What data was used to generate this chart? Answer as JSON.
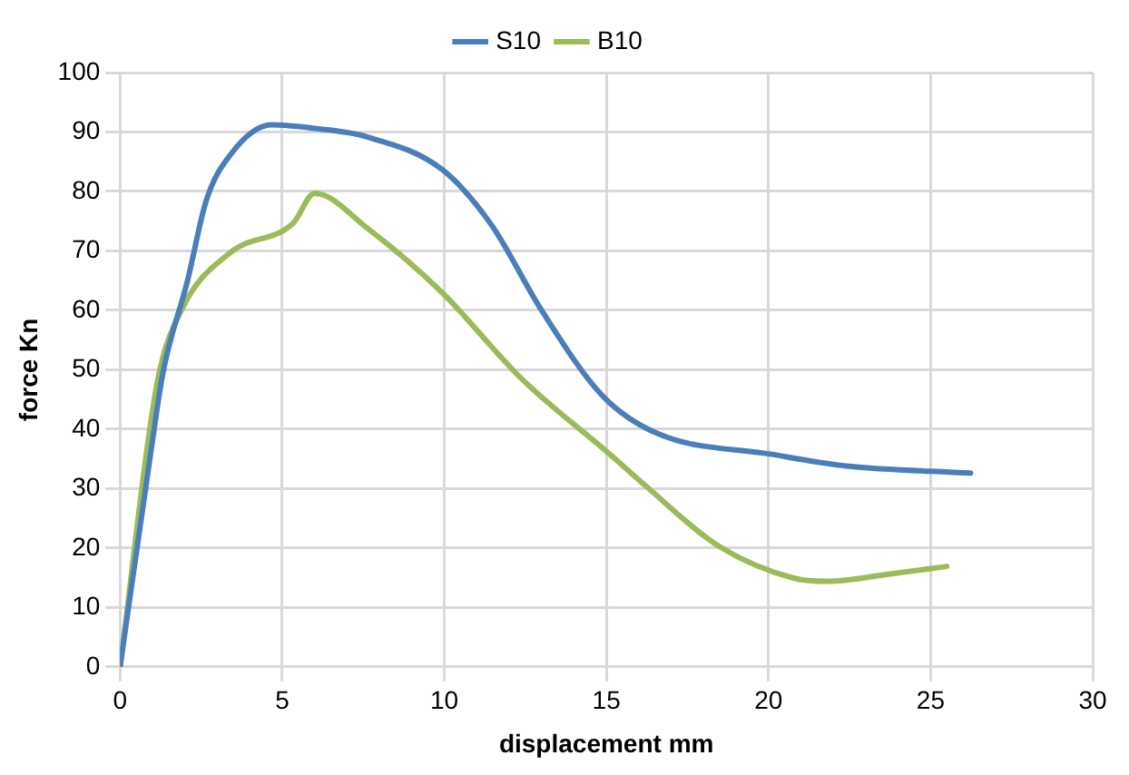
{
  "chart_data": {
    "type": "line",
    "xlabel": "displacement mm",
    "ylabel": "force Kn",
    "xlim": [
      0,
      30
    ],
    "xticks": [
      0,
      5,
      10,
      15,
      20,
      25,
      30
    ],
    "ylim": [
      0,
      100
    ],
    "yticks": [
      0,
      10,
      20,
      30,
      40,
      50,
      60,
      70,
      80,
      90,
      100
    ],
    "grid": true,
    "legend": "top",
    "marker": "none",
    "line_style": "solid",
    "series": [
      {
        "name": "S10",
        "color": "#4a7ebb",
        "x": [
          0,
          0.94,
          1.32,
          2.08,
          2.66,
          3.42,
          4.67,
          6,
          7.6,
          9.93,
          11.45,
          13,
          14.9,
          16.6,
          20.06,
          22.4,
          26.23
        ],
        "values": [
          0,
          35.8,
          49.4,
          65,
          78.5,
          86.3,
          91.2,
          90.6,
          89.2,
          83.7,
          74.4,
          60,
          45.5,
          39.2,
          35.8,
          33.8,
          32.6
        ]
      },
      {
        "name": "B10",
        "color": "#9bbb59",
        "x": [
          0,
          1.13,
          1.89,
          3.42,
          5.33,
          6,
          7.63,
          9.93,
          12.4,
          15.1,
          16.2,
          18.5,
          20.8,
          21.8,
          23.7,
          25.5
        ],
        "values": [
          0,
          47.4,
          60,
          69.8,
          74.6,
          79.7,
          73.8,
          63,
          48.4,
          35.8,
          30.5,
          20.2,
          14.9,
          14.4,
          15.6,
          16.9
        ]
      }
    ]
  }
}
